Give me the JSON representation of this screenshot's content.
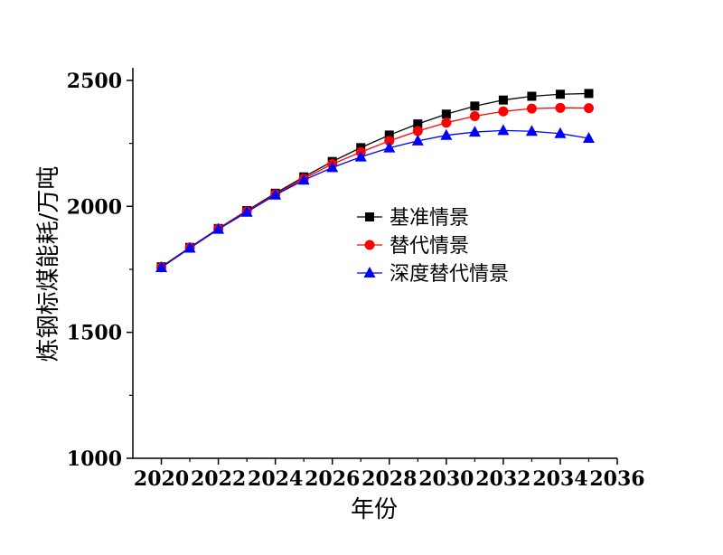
{
  "chart_data": {
    "type": "line",
    "xlabel": "年份",
    "ylabel": "炼钢标煤能耗/万吨",
    "xlim": [
      2019,
      2036
    ],
    "ylim": [
      1000,
      2550
    ],
    "xticks": [
      2020,
      2022,
      2024,
      2026,
      2028,
      2030,
      2032,
      2034,
      2036
    ],
    "yticks": [
      1000,
      1500,
      2000,
      2500
    ],
    "x": [
      2020,
      2021,
      2022,
      2023,
      2024,
      2025,
      2026,
      2027,
      2028,
      2029,
      2030,
      2031,
      2032,
      2033,
      2034,
      2035
    ],
    "series": [
      {
        "name": "基准情景",
        "color": "#000000",
        "marker": "square",
        "values": [
          1760,
          1837,
          1912,
          1983,
          2052,
          2117,
          2178,
          2233,
          2283,
          2327,
          2366,
          2398,
          2422,
          2437,
          2445,
          2448
        ]
      },
      {
        "name": "替代情景",
        "color": "#ff0000",
        "marker": "circle",
        "values": [
          1758,
          1836,
          1911,
          1980,
          2048,
          2110,
          2168,
          2215,
          2260,
          2299,
          2332,
          2358,
          2377,
          2388,
          2391,
          2390
        ]
      },
      {
        "name": "深度替代情景",
        "color": "#0000ff",
        "marker": "triangle",
        "values": [
          1757,
          1834,
          1909,
          1977,
          2045,
          2104,
          2154,
          2196,
          2232,
          2260,
          2282,
          2295,
          2301,
          2298,
          2289,
          2270
        ]
      }
    ],
    "legend_position": "center-right",
    "grid": false
  }
}
